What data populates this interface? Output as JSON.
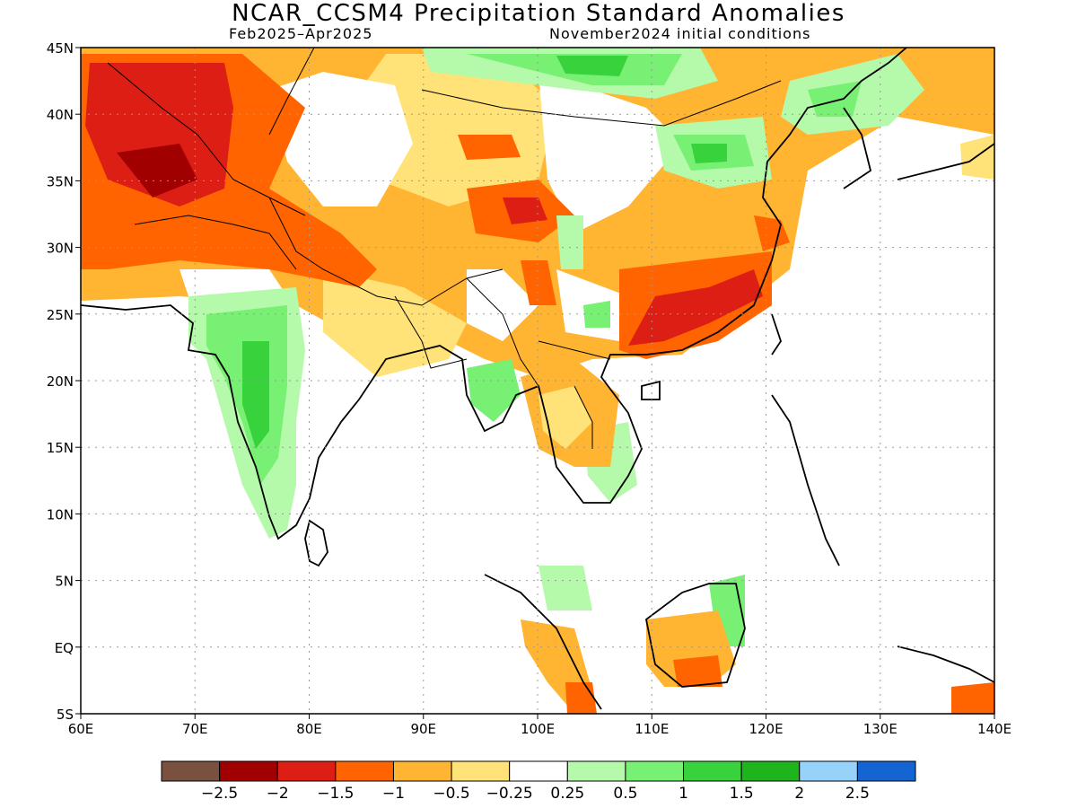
{
  "title": "NCAR_CCSM4 Precipitation Standard Anomalies",
  "period": "Feb2025–Apr2025",
  "initial_conditions": "November2024 initial conditions",
  "x_ticks": [
    "60E",
    "70E",
    "80E",
    "90E",
    "100E",
    "110E",
    "120E",
    "130E",
    "140E"
  ],
  "y_ticks": [
    "45N",
    "40N",
    "35N",
    "30N",
    "25N",
    "20N",
    "15N",
    "10N",
    "5N",
    "EQ",
    "5S"
  ],
  "legend": {
    "colors": [
      "#7a5040",
      "#a00000",
      "#dc1e14",
      "#ff6400",
      "#ffb432",
      "#ffe278",
      "#ffffff",
      "#b4faaa",
      "#78f073",
      "#37d23c",
      "#1eb41e",
      "#96d2fa",
      "#1464d2"
    ],
    "labels": [
      "−2.5",
      "−2",
      "−1.5",
      "−1",
      "−0.5",
      "−0.25",
      "0.25",
      "0.5",
      "1",
      "1.5",
      "2",
      "2.5"
    ]
  }
}
